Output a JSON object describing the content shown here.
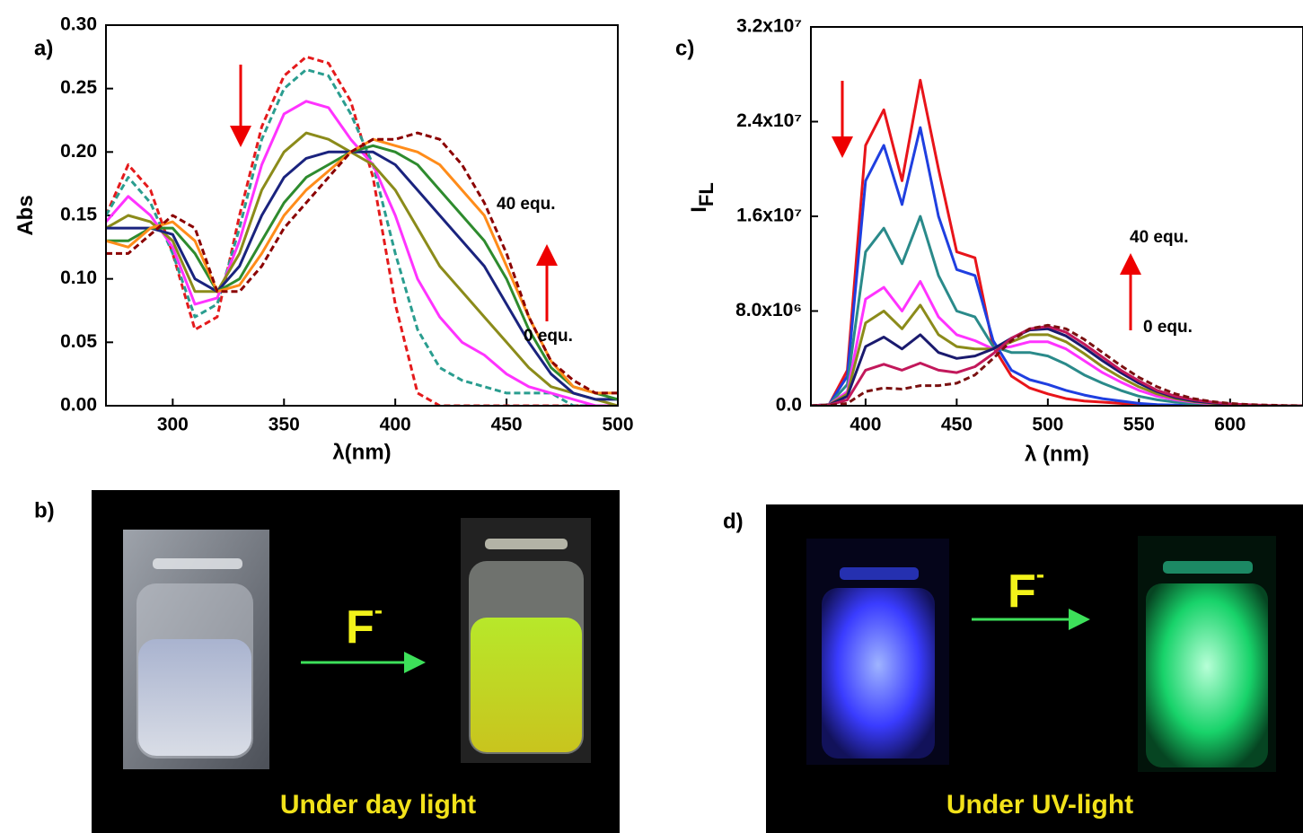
{
  "chart_data": [
    {
      "type": "line",
      "panel_label": "a)",
      "xlabel": "λ(nm)",
      "ylabel": "Abs",
      "xlim": [
        270,
        500
      ],
      "xticks": [
        300,
        350,
        400,
        450,
        500
      ],
      "ylim": [
        0,
        0.3
      ],
      "yticks": [
        {
          "value": 0,
          "label": "0.00"
        },
        0.05,
        {
          "value": 0.1,
          "label": "0.10"
        },
        0.15,
        {
          "value": 0.2,
          "label": "0.20"
        },
        0.25,
        {
          "value": 0.3,
          "label": "0.30"
        }
      ],
      "grid": false,
      "annotations": [
        "40 equ.",
        "0 equ."
      ],
      "x": [
        270,
        280,
        290,
        300,
        310,
        320,
        330,
        340,
        350,
        360,
        370,
        380,
        390,
        400,
        410,
        420,
        430,
        440,
        450,
        460,
        470,
        480,
        490,
        500
      ],
      "series": [
        {
          "color": "#e41a1c",
          "style": "dashed",
          "values": [
            0.15,
            0.19,
            0.17,
            0.12,
            0.06,
            0.07,
            0.15,
            0.22,
            0.26,
            0.275,
            0.27,
            0.24,
            0.18,
            0.08,
            0.01,
            0,
            0,
            0,
            0,
            0,
            0,
            0,
            0,
            0
          ]
        },
        {
          "color": "#2a9d8f",
          "style": "dashed",
          "values": [
            0.15,
            0.18,
            0.16,
            0.12,
            0.07,
            0.08,
            0.14,
            0.21,
            0.25,
            0.265,
            0.26,
            0.23,
            0.19,
            0.12,
            0.06,
            0.03,
            0.02,
            0.015,
            0.01,
            0.01,
            0.01,
            0,
            0,
            0
          ]
        },
        {
          "color": "#ff33ff",
          "style": "solid",
          "values": [
            0.145,
            0.165,
            0.15,
            0.125,
            0.08,
            0.085,
            0.13,
            0.19,
            0.23,
            0.24,
            0.235,
            0.21,
            0.19,
            0.15,
            0.1,
            0.07,
            0.05,
            0.04,
            0.025,
            0.015,
            0.01,
            0.005,
            0,
            0
          ]
        },
        {
          "color": "#8b8b1a",
          "style": "solid",
          "values": [
            0.14,
            0.15,
            0.145,
            0.13,
            0.09,
            0.09,
            0.12,
            0.17,
            0.2,
            0.215,
            0.21,
            0.2,
            0.19,
            0.17,
            0.14,
            0.11,
            0.09,
            0.07,
            0.05,
            0.03,
            0.015,
            0.01,
            0.005,
            0
          ]
        },
        {
          "color": "#1a237e",
          "style": "solid",
          "values": [
            0.14,
            0.14,
            0.14,
            0.135,
            0.1,
            0.09,
            0.11,
            0.15,
            0.18,
            0.195,
            0.2,
            0.2,
            0.2,
            0.19,
            0.17,
            0.15,
            0.13,
            0.11,
            0.08,
            0.05,
            0.025,
            0.01,
            0.005,
            0.005
          ]
        },
        {
          "color": "#2e8b2e",
          "style": "solid",
          "values": [
            0.13,
            0.13,
            0.14,
            0.14,
            0.12,
            0.09,
            0.1,
            0.13,
            0.16,
            0.18,
            0.19,
            0.2,
            0.205,
            0.2,
            0.19,
            0.17,
            0.15,
            0.13,
            0.1,
            0.06,
            0.03,
            0.015,
            0.01,
            0.005
          ]
        },
        {
          "color": "#ff8c1a",
          "style": "solid",
          "values": [
            0.13,
            0.125,
            0.14,
            0.145,
            0.13,
            0.09,
            0.095,
            0.12,
            0.15,
            0.17,
            0.185,
            0.2,
            0.21,
            0.205,
            0.2,
            0.19,
            0.17,
            0.15,
            0.11,
            0.07,
            0.035,
            0.015,
            0.01,
            0.01
          ]
        },
        {
          "color": "#8b0000",
          "style": "dashed",
          "values": [
            0.12,
            0.12,
            0.135,
            0.15,
            0.14,
            0.09,
            0.09,
            0.11,
            0.14,
            0.16,
            0.18,
            0.2,
            0.21,
            0.21,
            0.215,
            0.21,
            0.19,
            0.16,
            0.12,
            0.07,
            0.035,
            0.02,
            0.01,
            0.01
          ]
        }
      ]
    },
    {
      "type": "line",
      "panel_label": "c)",
      "xlabel": "λ (nm)",
      "ylabel": "I",
      "ylabel_sub": "FL",
      "xlim": [
        370,
        640
      ],
      "xticks": [
        400,
        450,
        500,
        550,
        600
      ],
      "ylim": [
        0,
        32000000
      ],
      "yticks": [
        {
          "value": 0,
          "label": "0.0"
        },
        {
          "value": 8000000,
          "label": "8.0x10⁶"
        },
        {
          "value": 16000000,
          "label": "1.6x10⁷"
        },
        {
          "value": 24000000,
          "label": "2.4x10⁷"
        },
        {
          "value": 32000000,
          "label": "3.2x10⁷"
        }
      ],
      "grid": false,
      "annotations": [
        "40 equ.",
        "0 equ."
      ],
      "x": [
        370,
        380,
        390,
        400,
        410,
        420,
        430,
        440,
        450,
        460,
        470,
        480,
        490,
        500,
        510,
        520,
        530,
        540,
        550,
        560,
        570,
        580,
        590,
        600,
        610,
        620,
        630,
        640
      ],
      "series": [
        {
          "color": "#e8141a",
          "style": "solid",
          "values": [
            0,
            100000,
            3000000,
            22000000,
            25000000,
            19000000,
            27500000,
            20000000,
            13000000,
            12500000,
            5000000,
            2500000,
            1500000,
            1000000,
            600000,
            400000,
            300000,
            200000,
            100000,
            0,
            0,
            0,
            0,
            0,
            0,
            0,
            0,
            0
          ]
        },
        {
          "color": "#1f3fe0",
          "style": "solid",
          "values": [
            0,
            100000,
            2500000,
            19000000,
            22000000,
            17000000,
            23500000,
            16000000,
            11500000,
            11000000,
            5500000,
            3000000,
            2200000,
            1800000,
            1300000,
            900000,
            600000,
            400000,
            200000,
            100000,
            50000,
            0,
            0,
            0,
            0,
            0,
            0,
            0
          ]
        },
        {
          "color": "#2a8a8a",
          "style": "solid",
          "values": [
            0,
            100000,
            1800000,
            13000000,
            15000000,
            12000000,
            16000000,
            11000000,
            8000000,
            7500000,
            5000000,
            4500000,
            4500000,
            4200000,
            3500000,
            2600000,
            1900000,
            1300000,
            800000,
            500000,
            300000,
            150000,
            100000,
            50000,
            0,
            0,
            0,
            0
          ]
        },
        {
          "color": "#ff33ff",
          "style": "solid",
          "values": [
            0,
            100000,
            1200000,
            9000000,
            10000000,
            8000000,
            10500000,
            7500000,
            6000000,
            5500000,
            4800000,
            5000000,
            5400000,
            5400000,
            4800000,
            3800000,
            2800000,
            2000000,
            1300000,
            800000,
            500000,
            300000,
            150000,
            100000,
            50000,
            0,
            0,
            0
          ]
        },
        {
          "color": "#8b8b1a",
          "style": "solid",
          "values": [
            0,
            80000,
            1000000,
            7000000,
            8000000,
            6500000,
            8500000,
            6000000,
            5000000,
            4800000,
            4800000,
            5400000,
            6000000,
            6000000,
            5400000,
            4400000,
            3300000,
            2400000,
            1600000,
            1000000,
            600000,
            350000,
            200000,
            100000,
            50000,
            0,
            0,
            0
          ]
        },
        {
          "color": "#1a1a6e",
          "style": "solid",
          "values": [
            0,
            60000,
            800000,
            5000000,
            5800000,
            4800000,
            6000000,
            4500000,
            4000000,
            4200000,
            4800000,
            5700000,
            6400000,
            6500000,
            5900000,
            4900000,
            3800000,
            2800000,
            1900000,
            1200000,
            700000,
            400000,
            250000,
            120000,
            60000,
            0,
            0,
            0
          ]
        },
        {
          "color": "#c2185b",
          "style": "solid",
          "values": [
            0,
            50000,
            500000,
            3000000,
            3500000,
            3000000,
            3600000,
            3000000,
            2800000,
            3300000,
            4400000,
            5700000,
            6500000,
            6700000,
            6200000,
            5200000,
            4100000,
            3000000,
            2100000,
            1300000,
            800000,
            500000,
            300000,
            150000,
            80000,
            30000,
            0,
            0
          ]
        },
        {
          "color": "#7a1010",
          "style": "dashed",
          "values": [
            0,
            30000,
            200000,
            1200000,
            1500000,
            1400000,
            1700000,
            1700000,
            1900000,
            2600000,
            4000000,
            5500000,
            6500000,
            6800000,
            6500000,
            5600000,
            4500000,
            3400000,
            2400000,
            1600000,
            1000000,
            600000,
            350000,
            200000,
            100000,
            50000,
            20000,
            0
          ]
        }
      ]
    }
  ],
  "photos": [
    {
      "panel_label": "b)",
      "ion": "F",
      "ion_charge": "-",
      "caption": "Under day light"
    },
    {
      "panel_label": "d)",
      "ion": "F",
      "ion_charge": "-",
      "caption": "Under UV-light"
    }
  ]
}
